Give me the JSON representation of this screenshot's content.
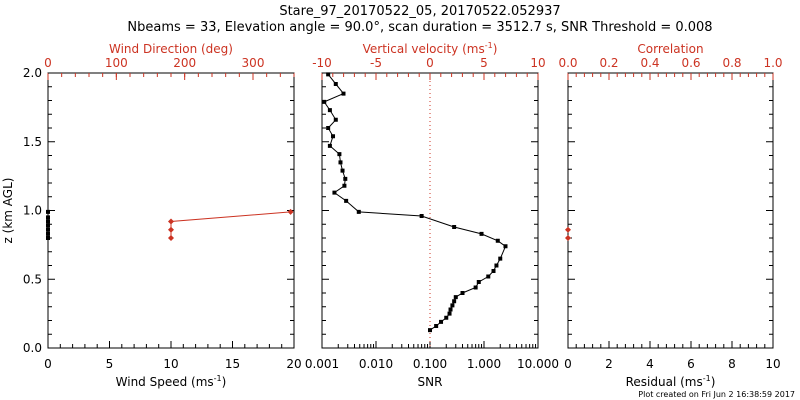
{
  "title_line1": "Stare_97_20170522_05, 20170522.052937",
  "title_line2": "Nbeams = 33, Elevation angle = 90.0°, scan duration = 3512.7 s, SNR Threshold = 0.008",
  "footer": "Plot created on Fri Jun  2 16:38:59 2017",
  "colors": {
    "black": "#000000",
    "red": "#cc3322"
  },
  "chart_data": [
    {
      "type": "line",
      "name": "wind",
      "ylabel": "z (km AGL)",
      "ylim": [
        0,
        2
      ],
      "yticks": [
        "0.0",
        "0.5",
        "1.0",
        "1.5",
        "2.0"
      ],
      "xlabel_bottom": "Wind Speed (ms",
      "xlabel_bottom_sup": "-1",
      "xlabel_bottom_tail": ")",
      "xlim_bottom": [
        0,
        20
      ],
      "xticks_bottom": [
        "0",
        "5",
        "10",
        "15",
        "20"
      ],
      "xlabel_top": "Wind Direction (deg)",
      "xlim_top": [
        0,
        360
      ],
      "xticks_top": [
        "0",
        "100",
        "200",
        "300"
      ],
      "series": [
        {
          "name": "Wind Speed",
          "color": "#000000",
          "axis": "bottom",
          "points": [
            [
              0,
              0.8
            ],
            [
              0,
              0.83
            ],
            [
              0,
              0.86
            ],
            [
              0,
              0.89
            ],
            [
              0,
              0.92
            ],
            [
              0,
              0.95
            ],
            [
              0,
              0.99
            ]
          ]
        },
        {
          "name": "Wind Direction",
          "color": "#cc3322",
          "axis": "top",
          "points": [
            [
              180,
              0.8
            ],
            [
              180,
              0.86
            ],
            [
              180,
              0.92
            ],
            [
              355,
              0.99
            ]
          ]
        }
      ]
    },
    {
      "type": "line",
      "name": "vertical-velocity-snr",
      "ylim": [
        0,
        2
      ],
      "xlabel_bottom": "SNR",
      "xscale_bottom": "log",
      "xlim_bottom": [
        0.001,
        10
      ],
      "xticks_bottom": [
        "0.001",
        "0.010",
        "0.100",
        "1.000",
        "10.000"
      ],
      "xlabel_top": "Vertical velocity (ms",
      "xlabel_top_sup": "-1",
      "xlabel_top_tail": ")",
      "xlim_top": [
        -10,
        10
      ],
      "xticks_top": [
        "-10",
        "-5",
        "0",
        "5",
        "10"
      ],
      "reference_line": {
        "axis": "top",
        "value": 0,
        "color": "#cc3322",
        "style": "dotted"
      },
      "series": [
        {
          "name": "SNR",
          "color": "#000000",
          "axis": "bottom",
          "points": [
            [
              0.1,
              0.13
            ],
            [
              0.13,
              0.16
            ],
            [
              0.16,
              0.19
            ],
            [
              0.2,
              0.22
            ],
            [
              0.23,
              0.25
            ],
            [
              0.24,
              0.28
            ],
            [
              0.26,
              0.31
            ],
            [
              0.28,
              0.34
            ],
            [
              0.3,
              0.37
            ],
            [
              0.4,
              0.4
            ],
            [
              0.7,
              0.44
            ],
            [
              0.8,
              0.48
            ],
            [
              1.2,
              0.52
            ],
            [
              1.5,
              0.56
            ],
            [
              1.7,
              0.6
            ],
            [
              2.0,
              0.65
            ],
            [
              2.5,
              0.74
            ],
            [
              1.8,
              0.78
            ],
            [
              0.9,
              0.83
            ],
            [
              0.28,
              0.88
            ],
            [
              0.07,
              0.96
            ],
            [
              0.0048,
              0.99
            ],
            [
              0.0028,
              1.07
            ],
            [
              0.0017,
              1.13
            ],
            [
              0.0026,
              1.18
            ],
            [
              0.0027,
              1.23
            ],
            [
              0.0024,
              1.29
            ],
            [
              0.0022,
              1.35
            ],
            [
              0.0021,
              1.41
            ],
            [
              0.0014,
              1.47
            ],
            [
              0.0016,
              1.54
            ],
            [
              0.0013,
              1.6
            ],
            [
              0.0018,
              1.66
            ],
            [
              0.0014,
              1.73
            ],
            [
              0.0011,
              1.79
            ],
            [
              0.0025,
              1.85
            ],
            [
              0.0018,
              1.92
            ],
            [
              0.0013,
              1.99
            ]
          ]
        }
      ]
    },
    {
      "type": "scatter",
      "name": "correlation-residual",
      "ylim": [
        0,
        2
      ],
      "xlabel_bottom": "Residual (ms",
      "xlabel_bottom_sup": "-1",
      "xlabel_bottom_tail": ")",
      "xlim_bottom": [
        0,
        10
      ],
      "xticks_bottom": [
        "0",
        "2",
        "4",
        "6",
        "8",
        "10"
      ],
      "xlabel_top": "Correlation",
      "xlim_top": [
        0,
        1
      ],
      "xticks_top": [
        "0.0",
        "0.2",
        "0.4",
        "0.6",
        "0.8",
        "1.0"
      ],
      "series": [
        {
          "name": "Residual",
          "color": "#cc3322",
          "axis": "bottom",
          "points": [
            [
              0,
              0.8
            ],
            [
              0,
              0.86
            ]
          ]
        }
      ]
    }
  ]
}
